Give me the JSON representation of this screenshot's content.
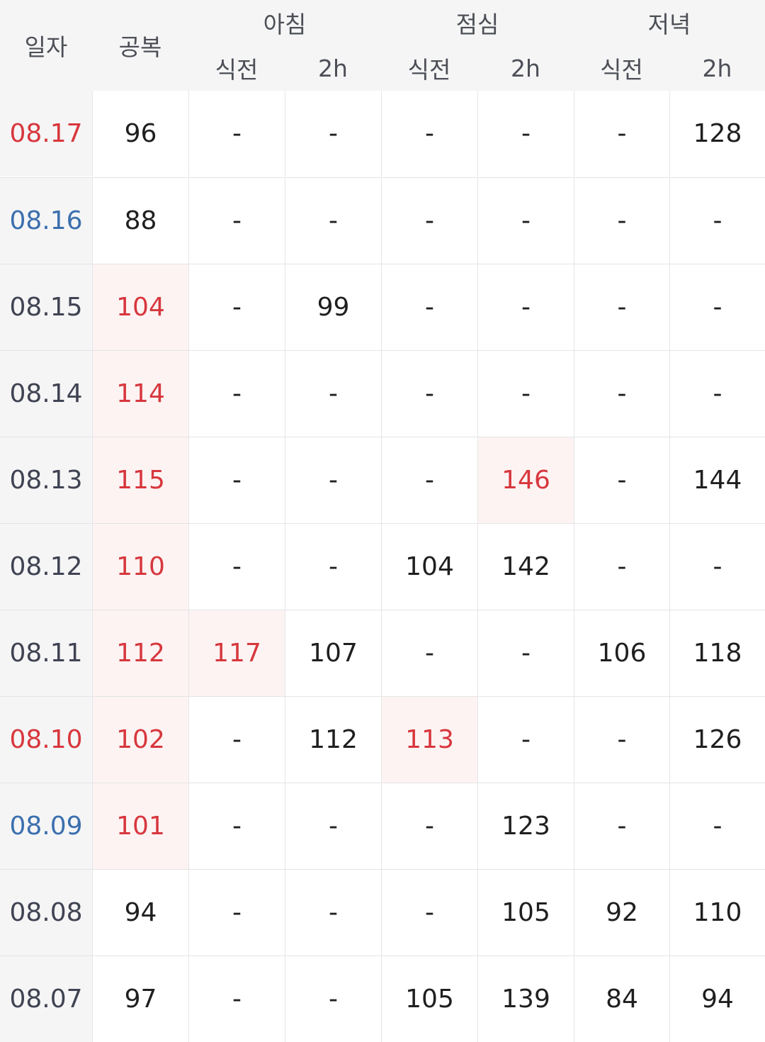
{
  "header": {
    "date_label": "일자",
    "fasting_label": "공복",
    "meals": [
      {
        "name": "아침",
        "before": "식전",
        "after": "2h"
      },
      {
        "name": "점심",
        "before": "식전",
        "after": "2h"
      },
      {
        "name": "저녁",
        "before": "식전",
        "after": "2h"
      }
    ]
  },
  "colors": {
    "high_text": "#d7373d",
    "high_background": "#fdf3f3",
    "weekend_sunday": "#d7373d",
    "weekend_saturday": "#3b6fae",
    "header_background": "#f5f5f6"
  },
  "rows": [
    {
      "date": "08.17",
      "date_color": "red",
      "values": [
        "96",
        "-",
        "-",
        "-",
        "-",
        "-",
        "128"
      ],
      "high": [
        false,
        false,
        false,
        false,
        false,
        false,
        false
      ]
    },
    {
      "date": "08.16",
      "date_color": "blue",
      "values": [
        "88",
        "-",
        "-",
        "-",
        "-",
        "-",
        "-"
      ],
      "high": [
        false,
        false,
        false,
        false,
        false,
        false,
        false
      ]
    },
    {
      "date": "08.15",
      "date_color": "",
      "values": [
        "104",
        "-",
        "99",
        "-",
        "-",
        "-",
        "-"
      ],
      "high": [
        true,
        false,
        false,
        false,
        false,
        false,
        false
      ]
    },
    {
      "date": "08.14",
      "date_color": "",
      "values": [
        "114",
        "-",
        "-",
        "-",
        "-",
        "-",
        "-"
      ],
      "high": [
        true,
        false,
        false,
        false,
        false,
        false,
        false
      ]
    },
    {
      "date": "08.13",
      "date_color": "",
      "values": [
        "115",
        "-",
        "-",
        "-",
        "146",
        "-",
        "144"
      ],
      "high": [
        true,
        false,
        false,
        false,
        true,
        false,
        false
      ]
    },
    {
      "date": "08.12",
      "date_color": "",
      "values": [
        "110",
        "-",
        "-",
        "104",
        "142",
        "-",
        "-"
      ],
      "high": [
        true,
        false,
        false,
        false,
        false,
        false,
        false
      ]
    },
    {
      "date": "08.11",
      "date_color": "",
      "values": [
        "112",
        "117",
        "107",
        "-",
        "-",
        "106",
        "118"
      ],
      "high": [
        true,
        true,
        false,
        false,
        false,
        false,
        false
      ]
    },
    {
      "date": "08.10",
      "date_color": "red",
      "values": [
        "102",
        "-",
        "112",
        "113",
        "-",
        "-",
        "126"
      ],
      "high": [
        true,
        false,
        false,
        true,
        false,
        false,
        false
      ]
    },
    {
      "date": "08.09",
      "date_color": "blue",
      "values": [
        "101",
        "-",
        "-",
        "-",
        "123",
        "-",
        "-"
      ],
      "high": [
        true,
        false,
        false,
        false,
        false,
        false,
        false
      ]
    },
    {
      "date": "08.08",
      "date_color": "",
      "values": [
        "94",
        "-",
        "-",
        "-",
        "105",
        "92",
        "110"
      ],
      "high": [
        false,
        false,
        false,
        false,
        false,
        false,
        false
      ]
    },
    {
      "date": "08.07",
      "date_color": "",
      "values": [
        "97",
        "-",
        "-",
        "105",
        "139",
        "84",
        "94"
      ],
      "high": [
        false,
        false,
        false,
        false,
        false,
        false,
        false
      ]
    }
  ]
}
